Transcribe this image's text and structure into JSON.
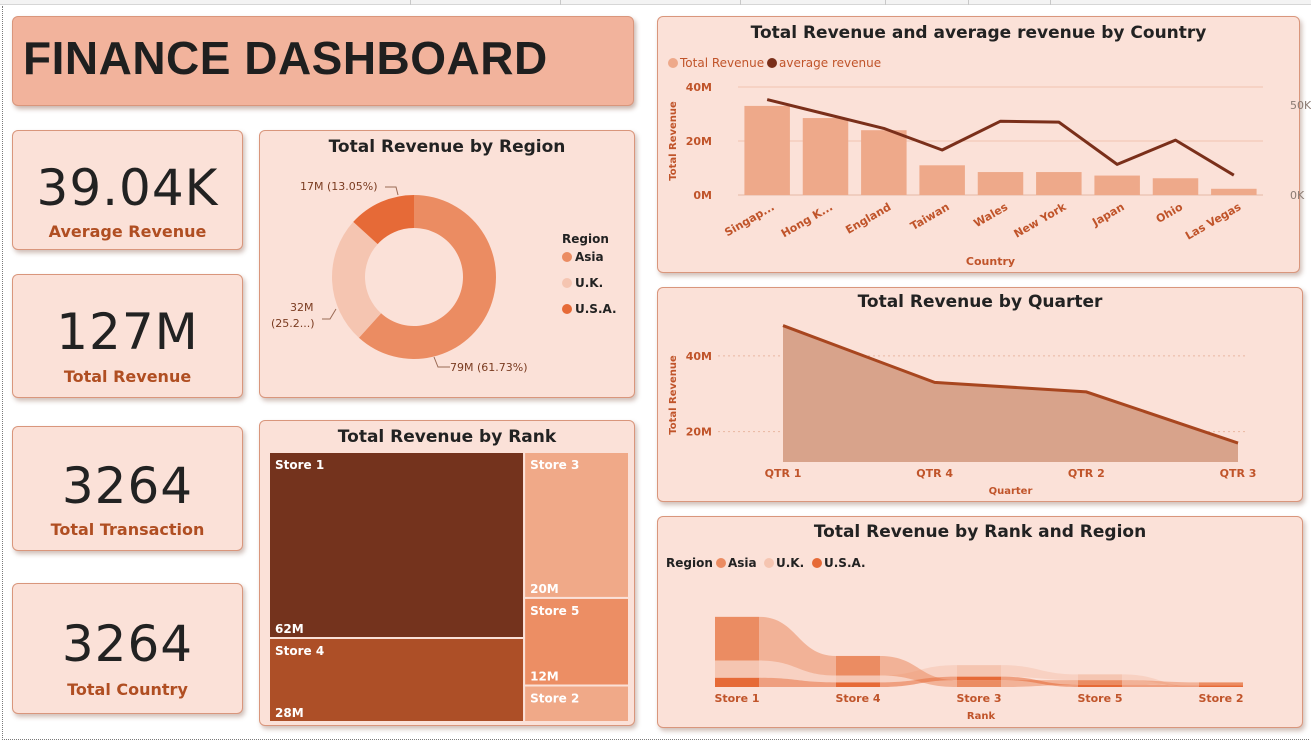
{
  "dashboard": {
    "title": "FINANCE DASHBOARD"
  },
  "kpis": [
    {
      "value": "39.04K",
      "label": "Average Revenue"
    },
    {
      "value": "127M",
      "label": "Total Revenue"
    },
    {
      "value": "3264",
      "label": "Total Transaction"
    },
    {
      "value": "3264",
      "label": "Total Country"
    }
  ],
  "colors": {
    "asia": "#eb8c62",
    "uk": "#f5c5b1",
    "usa": "#e66a37",
    "store1": "#74331d",
    "store4": "#ad4f27",
    "store3": "#f0a988",
    "store5": "#ec8e64",
    "store2": "#f0a988",
    "avg_line": "#7a2f1a",
    "bar": "#eea98a",
    "area_fill": "#d8a38b",
    "area_line": "#a8461f",
    "axis_text": "#c0542a",
    "card_bg": "#fbe1d8",
    "title_bg": "#f2b39c"
  },
  "chart_data": [
    {
      "id": "region-donut",
      "type": "pie",
      "title": "Total Revenue by Region",
      "legend_title": "Region",
      "legend_position": "right",
      "categories": [
        "Asia",
        "U.K.",
        "U.S.A."
      ],
      "values": [
        79,
        32,
        17
      ],
      "data_labels": [
        "79M (61.73%)",
        "32M (25.2...)",
        "17M (13.05%)"
      ],
      "colors": [
        "#eb8c62",
        "#f5c5b1",
        "#e66a37"
      ]
    },
    {
      "id": "country-combo",
      "type": "bar",
      "title": "Total Revenue and average revenue by Country",
      "xlabel": "Country",
      "ylabel": "Total Revenue",
      "legend_position": "top-left",
      "categories": [
        "Singap...",
        "Hong K...",
        "England",
        "Taiwan",
        "Wales",
        "New York",
        "Japan",
        "Ohio",
        "Las Vegas"
      ],
      "series": [
        {
          "name": "Total Revenue",
          "type": "bar",
          "axis": "left",
          "values": [
            33,
            28.5,
            24,
            11,
            8.5,
            8.5,
            7.2,
            6.2,
            2.3
          ]
        },
        {
          "name": "average revenue",
          "type": "line",
          "axis": "right",
          "values": [
            53000,
            45000,
            37000,
            25000,
            41000,
            40500,
            17000,
            30500,
            11000
          ]
        }
      ],
      "ylim": [
        0,
        40
      ],
      "yticks": [
        "0M",
        "20M",
        "40M"
      ],
      "y2lim": [
        0,
        60000
      ],
      "y2ticks": [
        "0K",
        "50K"
      ],
      "grid": true
    },
    {
      "id": "quarter-area",
      "type": "area",
      "title": "Total Revenue by Quarter",
      "xlabel": "Quarter",
      "ylabel": "Total Revenue",
      "categories": [
        "QTR 1",
        "QTR 4",
        "QTR 2",
        "QTR 3"
      ],
      "values": [
        48,
        33,
        30.5,
        17
      ],
      "ylim": [
        12,
        50
      ],
      "yticks": [
        "20M",
        "40M"
      ],
      "grid": true
    },
    {
      "id": "rank-treemap",
      "type": "treemap",
      "title": "Total Revenue by Rank",
      "categories": [
        "Store 1",
        "Store 4",
        "Store 3",
        "Store 5",
        "Store 2"
      ],
      "values": [
        62,
        28,
        20,
        12,
        5
      ],
      "data_labels": [
        "62M",
        "28M",
        "20M",
        "12M",
        ""
      ]
    },
    {
      "id": "rank-region-ribbon",
      "type": "ribbon",
      "title": "Total Revenue by Rank and Region",
      "xlabel": "Rank",
      "legend_title": "Region",
      "legend_position": "top-left",
      "categories": [
        "Store 1",
        "Store 4",
        "Store 3",
        "Store 5",
        "Store 2"
      ],
      "series": [
        {
          "name": "Asia",
          "values": [
            38,
            17,
            6,
            4,
            2.5
          ]
        },
        {
          "name": "U.K.",
          "values": [
            15,
            6,
            10,
            5,
            0
          ]
        },
        {
          "name": "U.S.A.",
          "values": [
            8,
            4,
            3,
            2,
            1.5
          ]
        }
      ]
    }
  ]
}
